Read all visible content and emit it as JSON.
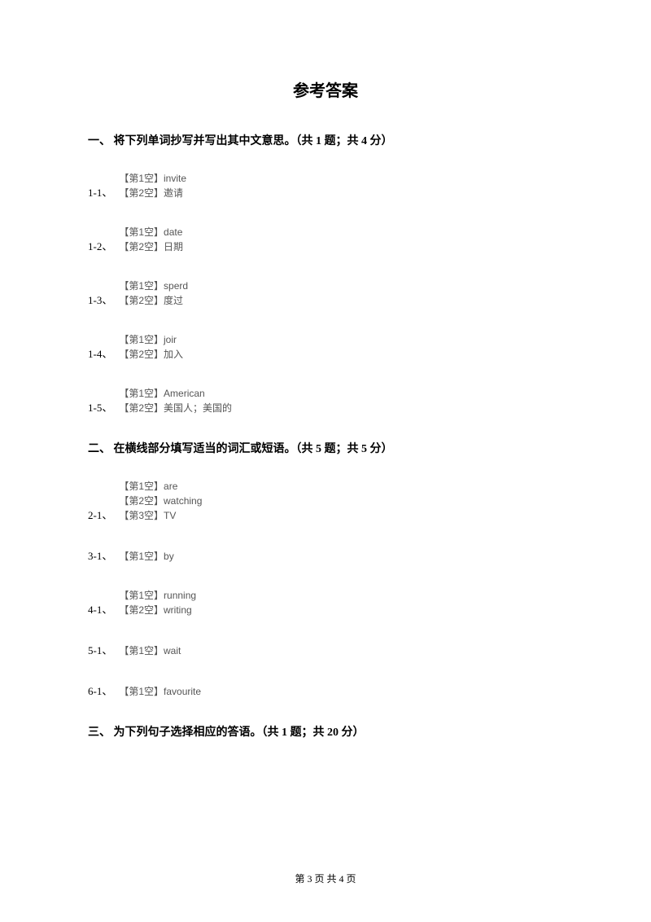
{
  "title": "参考答案",
  "sections": [
    {
      "header": "一、 将下列单词抄写并写出其中文意思。（共 1 题；共 4 分）",
      "items": [
        {
          "number": "1-1、",
          "lines": [
            "【第1空】invite",
            "【第2空】邀请"
          ]
        },
        {
          "number": "1-2、",
          "lines": [
            "【第1空】date",
            "【第2空】日期"
          ]
        },
        {
          "number": "1-3、",
          "lines": [
            "【第1空】sperd",
            "【第2空】度过"
          ]
        },
        {
          "number": "1-4、",
          "lines": [
            "【第1空】joir",
            "【第2空】加入"
          ]
        },
        {
          "number": "1-5、",
          "lines": [
            "【第1空】American",
            "【第2空】美国人；美国的"
          ]
        }
      ]
    },
    {
      "header": "二、 在横线部分填写适当的词汇或短语。（共 5 题；共 5 分）",
      "items": [
        {
          "number": "2-1、",
          "lines": [
            "【第1空】are",
            "【第2空】watching",
            "【第3空】TV"
          ]
        },
        {
          "number": "3-1、",
          "lines": [
            "【第1空】by"
          ]
        },
        {
          "number": "4-1、",
          "lines": [
            "【第1空】running",
            "【第2空】writing"
          ]
        },
        {
          "number": "5-1、",
          "lines": [
            "【第1空】wait"
          ]
        },
        {
          "number": "6-1、",
          "lines": [
            "【第1空】favourite"
          ]
        }
      ]
    },
    {
      "header": "三、 为下列句子选择相应的答语。（共 1 题；共 20 分）",
      "items": []
    }
  ],
  "footer": "第 3 页 共 4 页"
}
